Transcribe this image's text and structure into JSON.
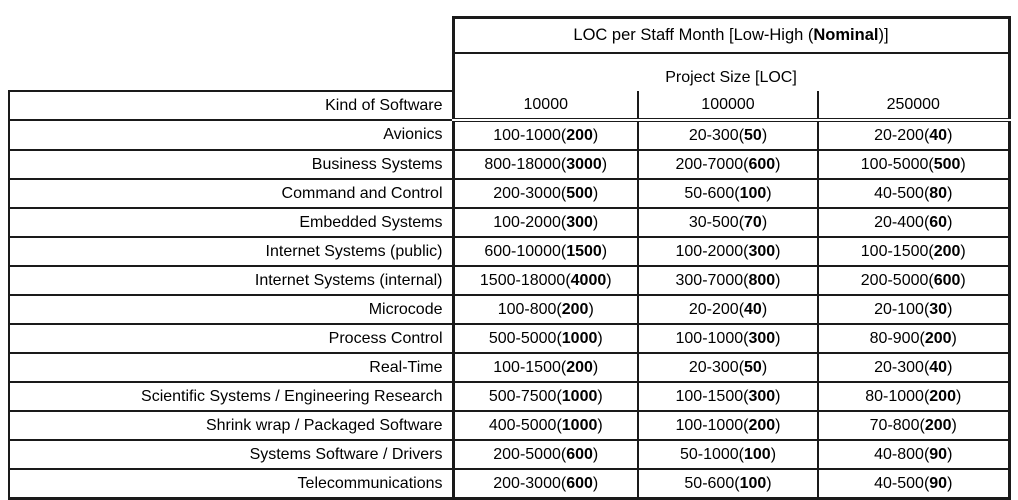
{
  "table": {
    "title": {
      "prefix": "LOC per Staff Month [Low-High (",
      "bold": "Nominal",
      "suffix": ")]"
    },
    "subtitle": "Project Size [LOC]",
    "kind_header": "Kind of Software",
    "sizes": [
      "10000",
      "100000",
      "250000"
    ],
    "rows": [
      {
        "kind": "Avionics",
        "cells": [
          {
            "low_high": "100-1000",
            "nominal": "200"
          },
          {
            "low_high": "20-300",
            "nominal": "50"
          },
          {
            "low_high": "20-200",
            "nominal": "40"
          }
        ]
      },
      {
        "kind": "Business Systems",
        "cells": [
          {
            "low_high": "800-18000",
            "nominal": "3000"
          },
          {
            "low_high": "200-7000",
            "nominal": "600"
          },
          {
            "low_high": "100-5000",
            "nominal": "500"
          }
        ]
      },
      {
        "kind": "Command and Control",
        "cells": [
          {
            "low_high": "200-3000",
            "nominal": "500"
          },
          {
            "low_high": "50-600",
            "nominal": "100"
          },
          {
            "low_high": "40-500",
            "nominal": "80"
          }
        ]
      },
      {
        "kind": "Embedded Systems",
        "cells": [
          {
            "low_high": "100-2000",
            "nominal": "300"
          },
          {
            "low_high": "30-500",
            "nominal": "70"
          },
          {
            "low_high": "20-400",
            "nominal": "60"
          }
        ]
      },
      {
        "kind": "Internet Systems (public)",
        "cells": [
          {
            "low_high": "600-10000",
            "nominal": "1500"
          },
          {
            "low_high": "100-2000",
            "nominal": "300"
          },
          {
            "low_high": "100-1500",
            "nominal": "200"
          }
        ]
      },
      {
        "kind": "Internet Systems (internal)",
        "cells": [
          {
            "low_high": "1500-18000",
            "nominal": "4000"
          },
          {
            "low_high": "300-7000",
            "nominal": "800"
          },
          {
            "low_high": "200-5000",
            "nominal": "600"
          }
        ]
      },
      {
        "kind": "Microcode",
        "cells": [
          {
            "low_high": "100-800",
            "nominal": "200"
          },
          {
            "low_high": "20-200",
            "nominal": "40"
          },
          {
            "low_high": "20-100",
            "nominal": "30"
          }
        ]
      },
      {
        "kind": "Process Control",
        "cells": [
          {
            "low_high": "500-5000",
            "nominal": "1000"
          },
          {
            "low_high": "100-1000",
            "nominal": "300"
          },
          {
            "low_high": "80-900",
            "nominal": "200"
          }
        ]
      },
      {
        "kind": "Real-Time",
        "cells": [
          {
            "low_high": "100-1500",
            "nominal": "200"
          },
          {
            "low_high": "20-300",
            "nominal": "50"
          },
          {
            "low_high": "20-300",
            "nominal": "40"
          }
        ]
      },
      {
        "kind": "Scientific Systems / Engineering Research",
        "cells": [
          {
            "low_high": "500-7500",
            "nominal": "1000"
          },
          {
            "low_high": "100-1500",
            "nominal": "300"
          },
          {
            "low_high": "80-1000",
            "nominal": "200"
          }
        ]
      },
      {
        "kind": "Shrink wrap / Packaged Software",
        "cells": [
          {
            "low_high": "400-5000",
            "nominal": "1000"
          },
          {
            "low_high": "100-1000",
            "nominal": "200"
          },
          {
            "low_high": "70-800",
            "nominal": "200"
          }
        ]
      },
      {
        "kind": "Systems Software / Drivers",
        "cells": [
          {
            "low_high": "200-5000",
            "nominal": "600"
          },
          {
            "low_high": "50-1000",
            "nominal": "100"
          },
          {
            "low_high": "40-800",
            "nominal": "90"
          }
        ]
      },
      {
        "kind": "Telecommunications",
        "cells": [
          {
            "low_high": "200-3000",
            "nominal": "600"
          },
          {
            "low_high": "50-600",
            "nominal": "100"
          },
          {
            "low_high": "40-500",
            "nominal": "90"
          }
        ]
      }
    ]
  }
}
